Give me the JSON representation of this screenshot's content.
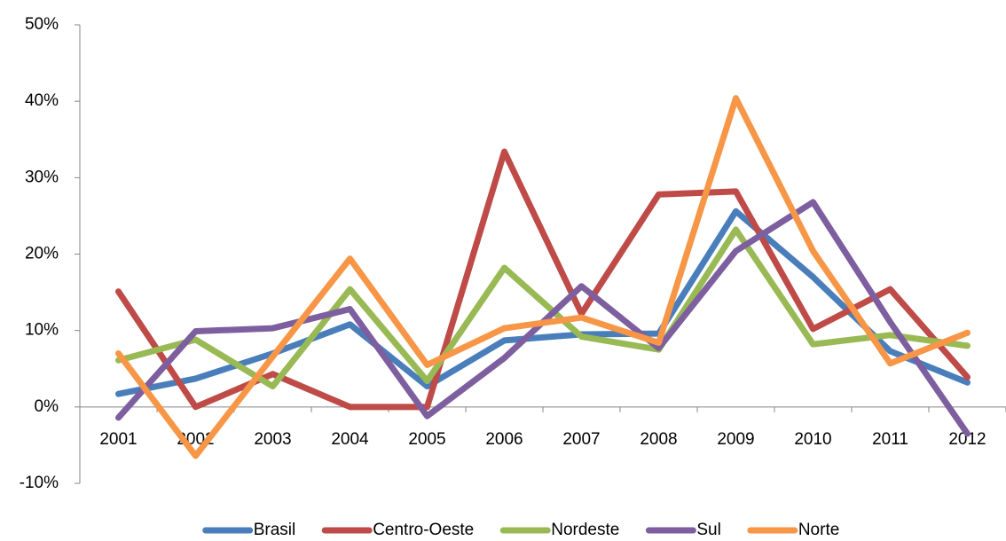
{
  "chart_data": {
    "type": "line",
    "categories": [
      "2001",
      "2002",
      "2003",
      "2004",
      "2005",
      "2006",
      "2007",
      "2008",
      "2009",
      "2010",
      "2011",
      "2012"
    ],
    "series": [
      {
        "name": "Brasil",
        "color": "#4a7ebb",
        "values": [
          1.7,
          3.7,
          7,
          10.8,
          2.7,
          8.7,
          9.5,
          9.6,
          25.6,
          17,
          7.3,
          3.2
        ]
      },
      {
        "name": "Centro-Oeste",
        "color": "#be4b48",
        "values": [
          15.1,
          0,
          4.3,
          0,
          0,
          33.4,
          12.2,
          27.8,
          28.2,
          10.2,
          15.4,
          3.9
        ]
      },
      {
        "name": "Nordeste",
        "color": "#98b954",
        "values": [
          6.1,
          8.8,
          2.7,
          15.4,
          3.4,
          18.2,
          9.2,
          7.5,
          23.2,
          8.2,
          9.4,
          8
        ]
      },
      {
        "name": "Sul",
        "color": "#7d5fa0",
        "values": [
          -1.4,
          9.9,
          10.3,
          12.8,
          -1.2,
          6.4,
          15.8,
          7.7,
          20.4,
          26.8,
          11.1,
          -3.5
        ]
      },
      {
        "name": "Norte",
        "color": "#f79646",
        "values": [
          7,
          -6.4,
          6.6,
          19.4,
          5.5,
          10.3,
          11.7,
          8.4,
          40.4,
          20.4,
          5.7,
          9.7
        ]
      }
    ],
    "ylim": [
      -10,
      50
    ],
    "yticks": [
      {
        "value": -10,
        "label": "-10%"
      },
      {
        "value": 0,
        "label": "0%"
      },
      {
        "value": 10,
        "label": "10%"
      },
      {
        "value": 20,
        "label": "20%"
      },
      {
        "value": 30,
        "label": "30%"
      },
      {
        "value": 40,
        "label": "40%"
      },
      {
        "value": 50,
        "label": "50%"
      }
    ],
    "grid": false,
    "legend": "bottom"
  }
}
